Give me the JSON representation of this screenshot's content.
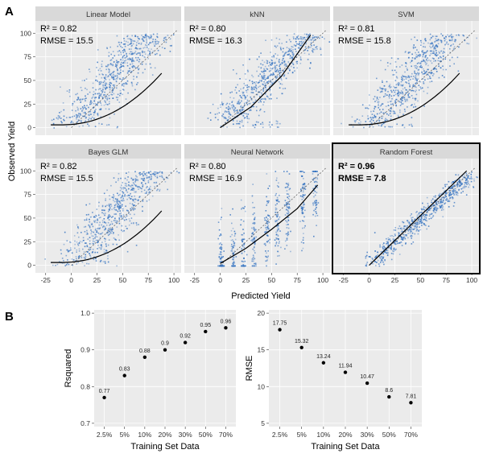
{
  "panel_labels": {
    "a": "A",
    "b": "B"
  },
  "panelA": {
    "ylabel": "Observed Yield",
    "xlabel": "Predicted Yield",
    "x_ticks": [
      "-25",
      "0",
      "25",
      "50",
      "75",
      "100"
    ],
    "y_ticks": [
      "0",
      "25",
      "50",
      "75",
      "100"
    ],
    "facets": [
      {
        "title": "Linear Model",
        "r2": "R² = 0.82",
        "rmse": "RMSE = 15.5"
      },
      {
        "title": "kNN",
        "r2": "R² = 0.80",
        "rmse": "RMSE = 16.3"
      },
      {
        "title": "SVM",
        "r2": "R² = 0.81",
        "rmse": "RMSE = 15.8"
      },
      {
        "title": "Bayes GLM",
        "r2": "R² = 0.82",
        "rmse": "RMSE = 15.5"
      },
      {
        "title": "Neural Network",
        "r2": "R² = 0.80",
        "rmse": "RMSE = 16.9"
      },
      {
        "title": "Random Forest",
        "r2": "R² = 0.96",
        "rmse": "RMSE = 7.8"
      }
    ]
  },
  "chart_data": [
    {
      "type": "scatter",
      "xlabel": "Training Set Data",
      "ylabel": "Rsquared",
      "categories": [
        "2.5%",
        "5%",
        "10%",
        "20%",
        "30%",
        "50%",
        "70%"
      ],
      "values": [
        0.77,
        0.83,
        0.88,
        0.9,
        0.92,
        0.95,
        0.96
      ],
      "value_labels": [
        "0.77",
        "0.83",
        "0.88",
        "0.9",
        "0.92",
        "0.95",
        "0.96"
      ],
      "y_ticks": [
        "0.7",
        "0.8",
        "0.9",
        "1.0"
      ],
      "ylim": [
        0.7,
        1.0
      ]
    },
    {
      "type": "scatter",
      "xlabel": "Training Set Data",
      "ylabel": "RMSE",
      "categories": [
        "2.5%",
        "5%",
        "10%",
        "20%",
        "30%",
        "50%",
        "70%"
      ],
      "values": [
        17.75,
        15.32,
        13.24,
        11.94,
        10.47,
        8.6,
        7.81
      ],
      "value_labels": [
        "17.75",
        "15.32",
        "13.24",
        "11.94",
        "10.47",
        "8.6",
        "7.81"
      ],
      "y_ticks": [
        "5",
        "10",
        "15",
        "20"
      ],
      "ylim": [
        5,
        20
      ]
    }
  ],
  "colors": {
    "panel_bg": "#ebebeb",
    "strip_bg": "#d9d9d9",
    "grid": "#ffffff",
    "points": "#2f6fbf",
    "line": "#000000",
    "highlight_border": "#000000"
  }
}
